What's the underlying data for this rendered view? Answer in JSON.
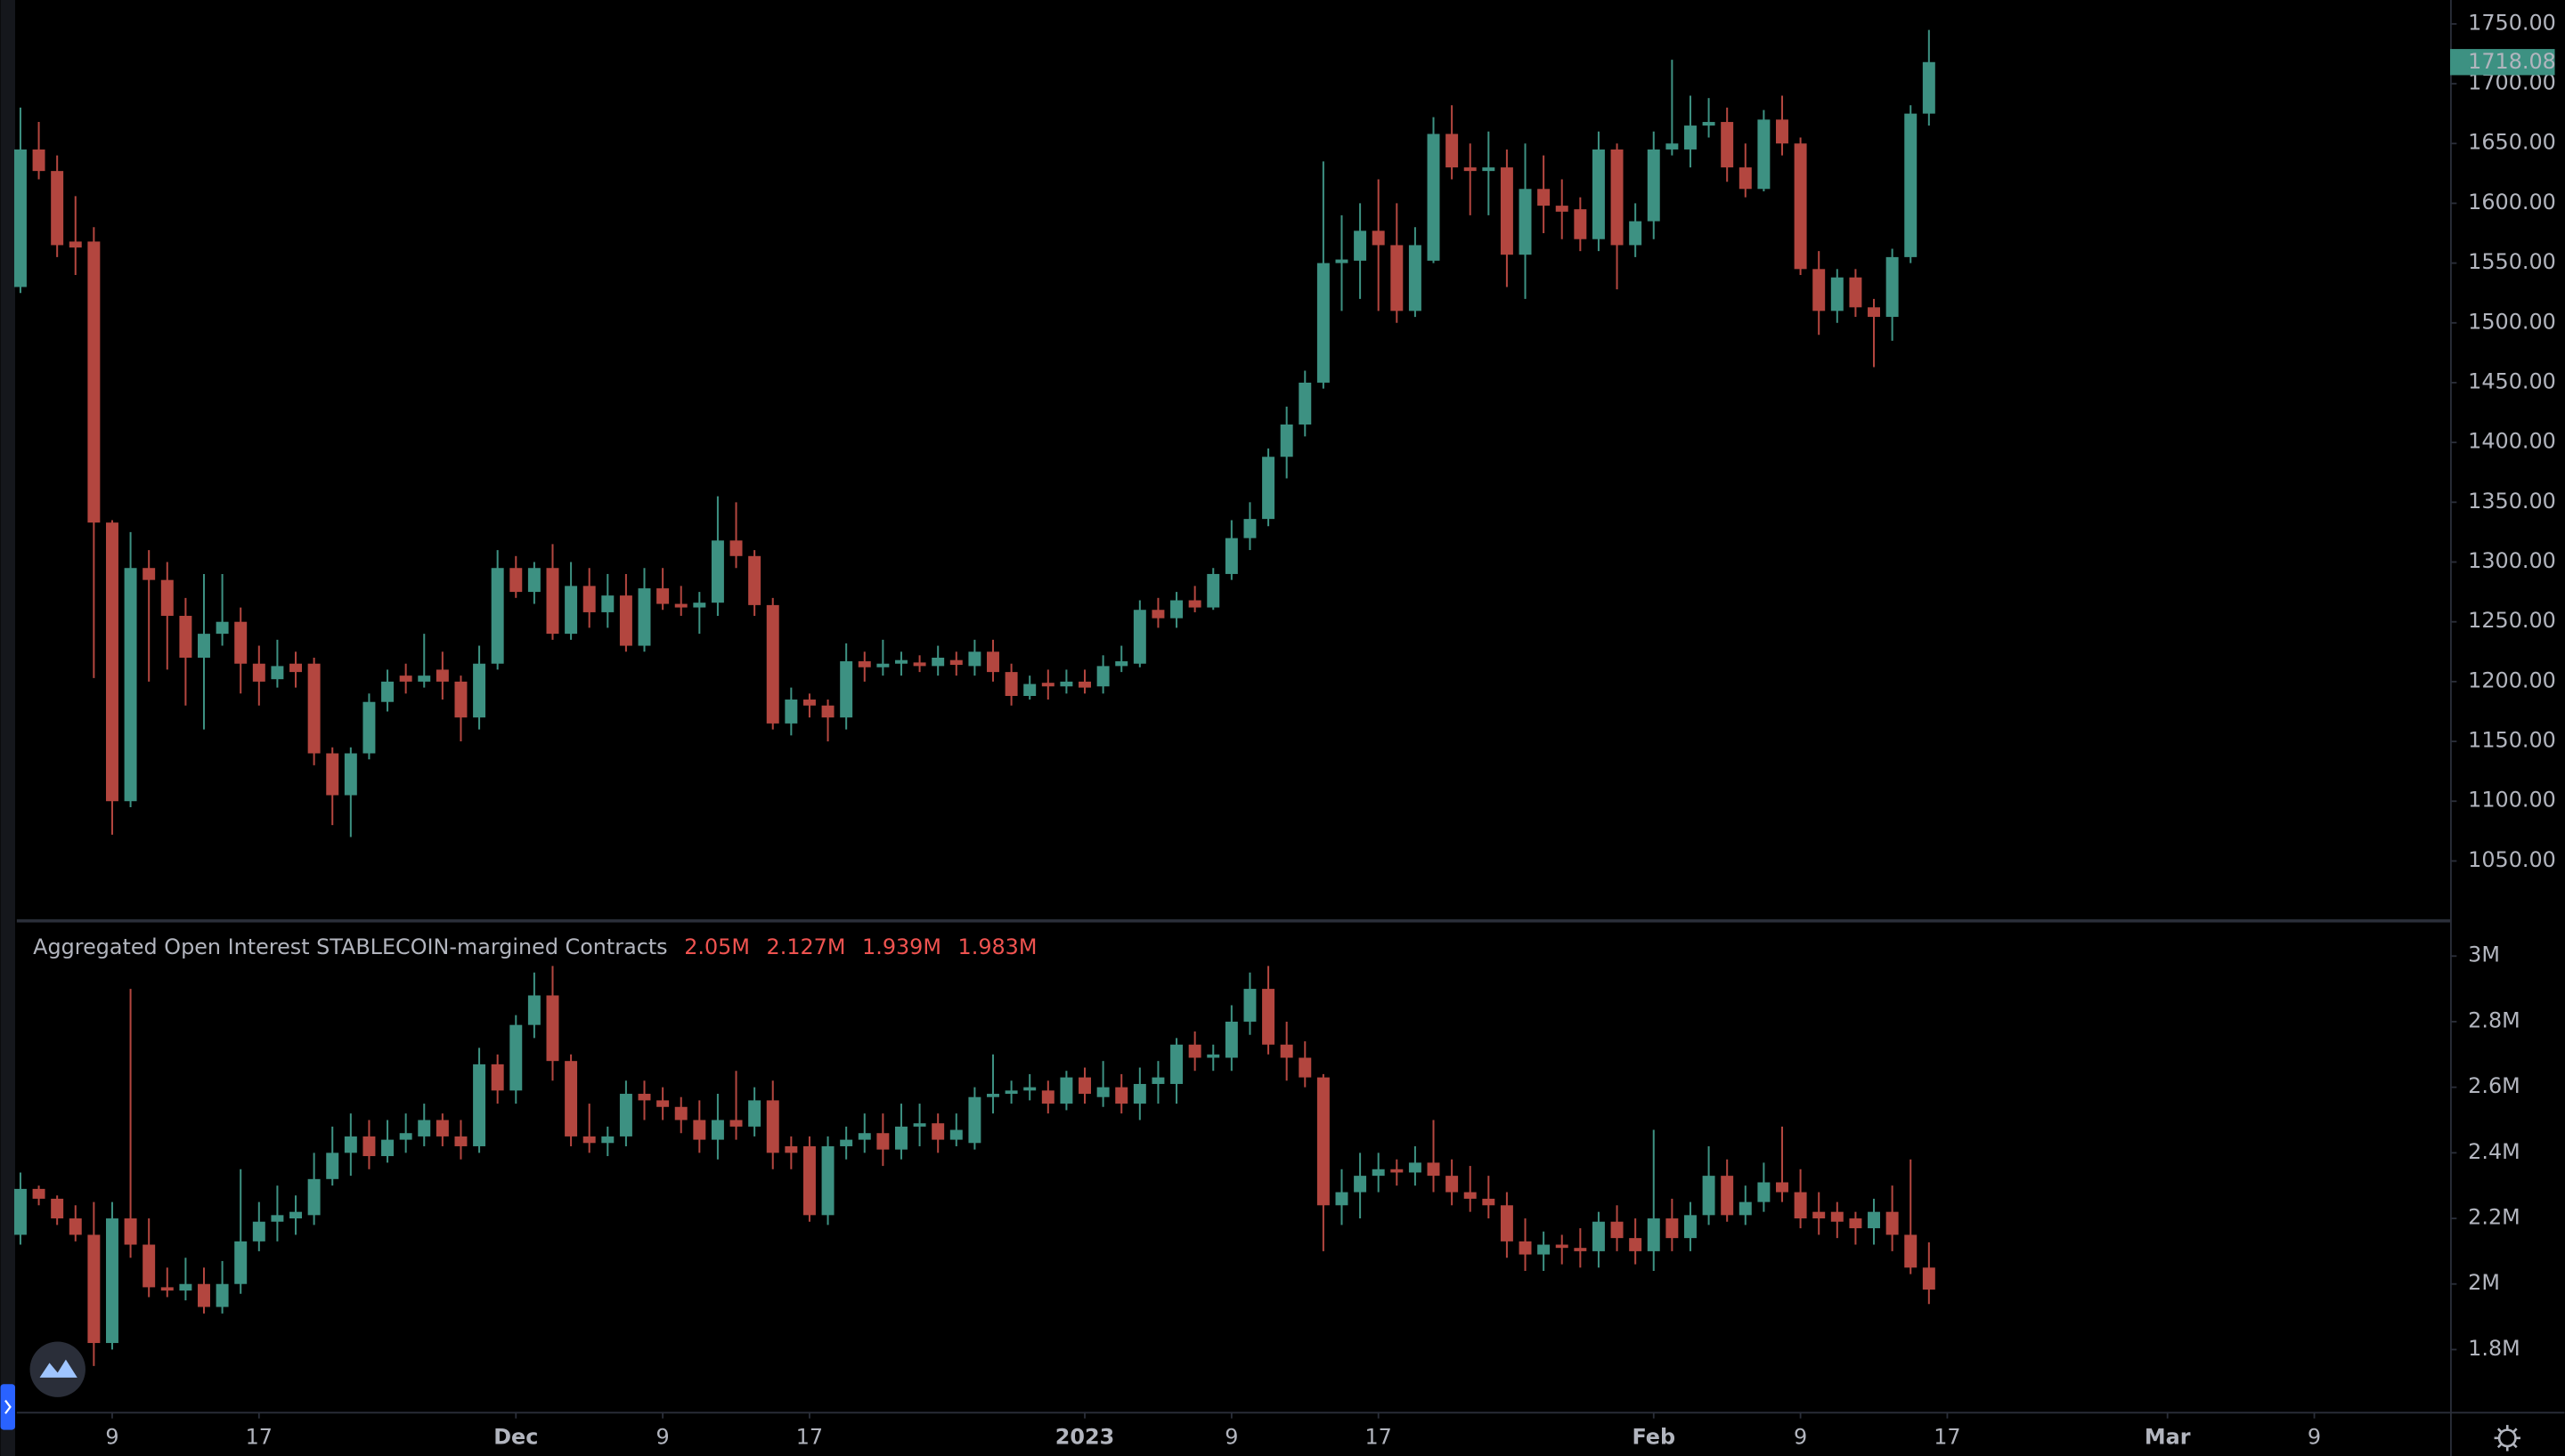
{
  "chart_data": [
    {
      "type": "candlestick",
      "series": [
        {
          "up_color": "#3d9182",
          "down_color": "#b3463f",
          "open": [
            1530,
            1645,
            1627,
            1568,
            1568,
            1333,
            1100,
            1295,
            1285,
            1255,
            1220,
            1240,
            1250,
            1215,
            1202,
            1215,
            1215,
            1140,
            1105,
            1140,
            1183,
            1205,
            1200,
            1210,
            1200,
            1170,
            1215,
            1295,
            1275,
            1295,
            1240,
            1280,
            1258,
            1272,
            1230,
            1278,
            1265,
            1262,
            1266,
            1318,
            1305,
            1264,
            1165,
            1185,
            1180,
            1170,
            1217,
            1212,
            1215,
            1216,
            1213,
            1218,
            1213,
            1225,
            1208,
            1188,
            1199,
            1196,
            1200,
            1196,
            1213,
            1215,
            1260,
            1253,
            1268,
            1262,
            1290,
            1320,
            1336,
            1388,
            1415,
            1450,
            1550,
            1552,
            1577,
            1565,
            1510,
            1552,
            1658,
            1630,
            1627,
            1630,
            1557,
            1612,
            1598,
            1595,
            1570,
            1645,
            1565,
            1585,
            1645,
            1645,
            1665,
            1668,
            1630,
            1612,
            1670,
            1650,
            1545,
            1510,
            1538,
            1513,
            1505,
            1555,
            1675
          ],
          "high": [
            1680,
            1668,
            1640,
            1606,
            1580,
            1335,
            1325,
            1310,
            1300,
            1270,
            1290,
            1290,
            1262,
            1230,
            1235,
            1225,
            1220,
            1145,
            1145,
            1190,
            1210,
            1215,
            1240,
            1225,
            1205,
            1230,
            1310,
            1305,
            1300,
            1315,
            1300,
            1295,
            1290,
            1290,
            1295,
            1295,
            1280,
            1275,
            1355,
            1350,
            1310,
            1270,
            1195,
            1190,
            1185,
            1232,
            1225,
            1235,
            1225,
            1222,
            1230,
            1225,
            1235,
            1235,
            1215,
            1205,
            1210,
            1210,
            1210,
            1222,
            1230,
            1268,
            1270,
            1275,
            1280,
            1295,
            1335,
            1350,
            1395,
            1430,
            1460,
            1635,
            1590,
            1600,
            1620,
            1600,
            1580,
            1672,
            1682,
            1650,
            1660,
            1645,
            1650,
            1640,
            1620,
            1605,
            1660,
            1650,
            1600,
            1660,
            1720,
            1690,
            1688,
            1680,
            1650,
            1678,
            1690,
            1655,
            1560,
            1545,
            1545,
            1520,
            1562,
            1682,
            1745
          ],
          "low": [
            1525,
            1620,
            1555,
            1540,
            1203,
            1072,
            1095,
            1200,
            1210,
            1180,
            1160,
            1230,
            1190,
            1180,
            1195,
            1195,
            1130,
            1080,
            1070,
            1135,
            1175,
            1190,
            1195,
            1185,
            1150,
            1160,
            1210,
            1270,
            1265,
            1235,
            1235,
            1245,
            1245,
            1225,
            1225,
            1260,
            1255,
            1240,
            1255,
            1295,
            1255,
            1160,
            1155,
            1170,
            1150,
            1160,
            1200,
            1205,
            1205,
            1208,
            1205,
            1205,
            1205,
            1200,
            1180,
            1185,
            1185,
            1190,
            1190,
            1190,
            1208,
            1212,
            1245,
            1245,
            1258,
            1260,
            1285,
            1310,
            1330,
            1370,
            1405,
            1445,
            1510,
            1520,
            1510,
            1500,
            1505,
            1550,
            1620,
            1590,
            1590,
            1530,
            1520,
            1575,
            1570,
            1560,
            1560,
            1528,
            1555,
            1570,
            1640,
            1630,
            1655,
            1618,
            1605,
            1610,
            1640,
            1540,
            1490,
            1500,
            1505,
            1463,
            1485,
            1550,
            1665
          ],
          "close": [
            1645,
            1627,
            1565,
            1563,
            1333,
            1100,
            1295,
            1285,
            1255,
            1220,
            1240,
            1250,
            1215,
            1200,
            1213,
            1208,
            1140,
            1105,
            1140,
            1183,
            1200,
            1200,
            1205,
            1200,
            1170,
            1215,
            1295,
            1275,
            1295,
            1240,
            1280,
            1258,
            1272,
            1230,
            1278,
            1265,
            1262,
            1266,
            1318,
            1305,
            1264,
            1165,
            1185,
            1180,
            1170,
            1217,
            1212,
            1215,
            1218,
            1213,
            1220,
            1214,
            1225,
            1208,
            1188,
            1198,
            1196,
            1200,
            1195,
            1213,
            1217,
            1260,
            1253,
            1268,
            1262,
            1290,
            1320,
            1336,
            1388,
            1415,
            1450,
            1550,
            1553,
            1577,
            1565,
            1510,
            1565,
            1658,
            1630,
            1627,
            1630,
            1557,
            1612,
            1598,
            1593,
            1570,
            1645,
            1565,
            1585,
            1645,
            1650,
            1665,
            1668,
            1630,
            1612,
            1670,
            1650,
            1545,
            1510,
            1538,
            1513,
            1505,
            1555,
            1675,
            1718.08
          ]
        }
      ],
      "xlim": [
        -0.2,
        132.4
      ],
      "ylim": [
        1002,
        1770
      ],
      "yticks": [
        {
          "value": 1050,
          "label": "1050.00"
        },
        {
          "value": 1100,
          "label": "1100.00"
        },
        {
          "value": 1150,
          "label": "1150.00"
        },
        {
          "value": 1200,
          "label": "1200.00"
        },
        {
          "value": 1250,
          "label": "1250.00"
        },
        {
          "value": 1300,
          "label": "1300.00"
        },
        {
          "value": 1350,
          "label": "1350.00"
        },
        {
          "value": 1400,
          "label": "1400.00"
        },
        {
          "value": 1450,
          "label": "1450.00"
        },
        {
          "value": 1500,
          "label": "1500.00"
        },
        {
          "value": 1550,
          "label": "1550.00"
        },
        {
          "value": 1600,
          "label": "1600.00"
        },
        {
          "value": 1650,
          "label": "1650.00"
        },
        {
          "value": 1700,
          "label": "1700.00"
        },
        {
          "value": 1750,
          "label": "1750.00"
        }
      ],
      "grid": false
    },
    {
      "type": "candlestick",
      "title": "Aggregated Open Interest STABLECOIN-margined Contracts",
      "series": [
        {
          "up_color": "#3d9182",
          "down_color": "#b3463f",
          "legend_color": "#ef5350",
          "open": [
            2.15,
            2.29,
            2.26,
            2.2,
            2.15,
            1.82,
            2.2,
            2.12,
            1.99,
            1.98,
            2.0,
            1.93,
            2.0,
            2.13,
            2.19,
            2.2,
            2.21,
            2.32,
            2.4,
            2.45,
            2.39,
            2.44,
            2.45,
            2.5,
            2.45,
            2.42,
            2.67,
            2.59,
            2.79,
            2.88,
            2.68,
            2.45,
            2.43,
            2.45,
            2.58,
            2.56,
            2.54,
            2.5,
            2.44,
            2.5,
            2.48,
            2.56,
            2.42,
            2.42,
            2.21,
            2.42,
            2.44,
            2.46,
            2.41,
            2.48,
            2.49,
            2.44,
            2.43,
            2.57,
            2.58,
            2.59,
            2.59,
            2.55,
            2.63,
            2.57,
            2.6,
            2.55,
            2.61,
            2.61,
            2.73,
            2.69,
            2.69,
            2.8,
            2.9,
            2.73,
            2.69,
            2.63,
            2.24,
            2.28,
            2.33,
            2.35,
            2.34,
            2.37,
            2.33,
            2.28,
            2.26,
            2.24,
            2.13,
            2.09,
            2.12,
            2.11,
            2.1,
            2.19,
            2.14,
            2.1,
            2.2,
            2.14,
            2.21,
            2.33,
            2.21,
            2.25,
            2.31,
            2.28,
            2.22,
            2.22,
            2.2,
            2.17,
            2.22,
            2.15,
            2.05
          ],
          "high": [
            2.34,
            2.3,
            2.27,
            2.24,
            2.25,
            2.25,
            2.9,
            2.2,
            2.05,
            2.08,
            2.05,
            2.07,
            2.35,
            2.25,
            2.3,
            2.27,
            2.4,
            2.48,
            2.52,
            2.5,
            2.5,
            2.52,
            2.55,
            2.52,
            2.5,
            2.72,
            2.7,
            2.82,
            2.95,
            2.97,
            2.7,
            2.55,
            2.48,
            2.62,
            2.62,
            2.6,
            2.57,
            2.56,
            2.58,
            2.65,
            2.6,
            2.62,
            2.45,
            2.45,
            2.45,
            2.48,
            2.52,
            2.52,
            2.55,
            2.55,
            2.52,
            2.52,
            2.6,
            2.7,
            2.62,
            2.64,
            2.62,
            2.65,
            2.66,
            2.68,
            2.64,
            2.66,
            2.68,
            2.75,
            2.77,
            2.73,
            2.85,
            2.95,
            2.97,
            2.8,
            2.74,
            2.64,
            2.35,
            2.4,
            2.4,
            2.38,
            2.42,
            2.5,
            2.38,
            2.36,
            2.33,
            2.28,
            2.2,
            2.16,
            2.15,
            2.17,
            2.22,
            2.24,
            2.2,
            2.47,
            2.26,
            2.25,
            2.42,
            2.38,
            2.3,
            2.37,
            2.48,
            2.35,
            2.28,
            2.25,
            2.22,
            2.26,
            2.3,
            2.38,
            2.127
          ],
          "low": [
            2.12,
            2.24,
            2.18,
            2.13,
            1.75,
            1.8,
            2.08,
            1.96,
            1.96,
            1.95,
            1.91,
            1.91,
            1.97,
            2.1,
            2.13,
            2.15,
            2.18,
            2.3,
            2.33,
            2.35,
            2.37,
            2.4,
            2.42,
            2.42,
            2.38,
            2.4,
            2.55,
            2.55,
            2.75,
            2.62,
            2.42,
            2.4,
            2.39,
            2.42,
            2.5,
            2.5,
            2.46,
            2.4,
            2.38,
            2.44,
            2.45,
            2.35,
            2.35,
            2.19,
            2.18,
            2.38,
            2.4,
            2.36,
            2.38,
            2.42,
            2.4,
            2.42,
            2.41,
            2.52,
            2.55,
            2.56,
            2.52,
            2.53,
            2.55,
            2.54,
            2.52,
            2.5,
            2.55,
            2.55,
            2.65,
            2.65,
            2.65,
            2.76,
            2.7,
            2.62,
            2.6,
            2.1,
            2.18,
            2.2,
            2.28,
            2.3,
            2.3,
            2.28,
            2.24,
            2.22,
            2.2,
            2.08,
            2.04,
            2.04,
            2.06,
            2.05,
            2.05,
            2.1,
            2.06,
            2.04,
            2.1,
            2.1,
            2.18,
            2.19,
            2.18,
            2.22,
            2.25,
            2.17,
            2.15,
            2.14,
            2.12,
            2.12,
            2.1,
            2.03,
            1.939
          ],
          "close": [
            2.29,
            2.26,
            2.2,
            2.15,
            1.82,
            2.2,
            2.12,
            1.99,
            1.98,
            2.0,
            1.93,
            2.0,
            2.13,
            2.19,
            2.21,
            2.22,
            2.32,
            2.4,
            2.45,
            2.39,
            2.44,
            2.46,
            2.5,
            2.45,
            2.42,
            2.67,
            2.59,
            2.79,
            2.88,
            2.68,
            2.45,
            2.43,
            2.45,
            2.58,
            2.56,
            2.54,
            2.5,
            2.44,
            2.5,
            2.48,
            2.56,
            2.4,
            2.4,
            2.21,
            2.42,
            2.44,
            2.46,
            2.41,
            2.48,
            2.49,
            2.44,
            2.47,
            2.57,
            2.58,
            2.59,
            2.6,
            2.55,
            2.63,
            2.58,
            2.6,
            2.55,
            2.61,
            2.63,
            2.73,
            2.69,
            2.7,
            2.8,
            2.9,
            2.73,
            2.69,
            2.63,
            2.24,
            2.28,
            2.33,
            2.35,
            2.34,
            2.37,
            2.33,
            2.28,
            2.26,
            2.24,
            2.13,
            2.09,
            2.12,
            2.11,
            2.1,
            2.19,
            2.14,
            2.1,
            2.2,
            2.14,
            2.21,
            2.33,
            2.21,
            2.25,
            2.31,
            2.28,
            2.2,
            2.2,
            2.19,
            2.17,
            2.22,
            2.15,
            2.05,
            1.983
          ],
          "legend_labels": [
            "2.05M",
            "2.127M",
            "1.939M",
            "1.983M"
          ]
        }
      ],
      "xlim": [
        -0.2,
        132.4
      ],
      "xticks": [
        {
          "value": 5,
          "label": "9"
        },
        {
          "value": 13,
          "label": "17"
        },
        {
          "value": 27,
          "label": "Dec"
        },
        {
          "value": 35,
          "label": "9"
        },
        {
          "value": 43,
          "label": "17"
        },
        {
          "value": 58,
          "label": "2023"
        },
        {
          "value": 66,
          "label": "9"
        },
        {
          "value": 74,
          "label": "17"
        },
        {
          "value": 89,
          "label": "Feb"
        },
        {
          "value": 97,
          "label": "9"
        },
        {
          "value": 105,
          "label": "17"
        },
        {
          "value": 117,
          "label": "Mar"
        },
        {
          "value": 125,
          "label": "9"
        }
      ],
      "ylim": [
        1.61,
        3.1
      ],
      "yticks": [
        {
          "value": 1.8,
          "label": "1.8M"
        },
        {
          "value": 2,
          "label": "2M"
        },
        {
          "value": 2.2,
          "label": "2.2M"
        },
        {
          "value": 2.4,
          "label": "2.4M"
        },
        {
          "value": 2.6,
          "label": "2.6M"
        },
        {
          "value": 2.8,
          "label": "2.8M"
        },
        {
          "value": 3,
          "label": "3M"
        }
      ],
      "grid": false
    }
  ]
}
